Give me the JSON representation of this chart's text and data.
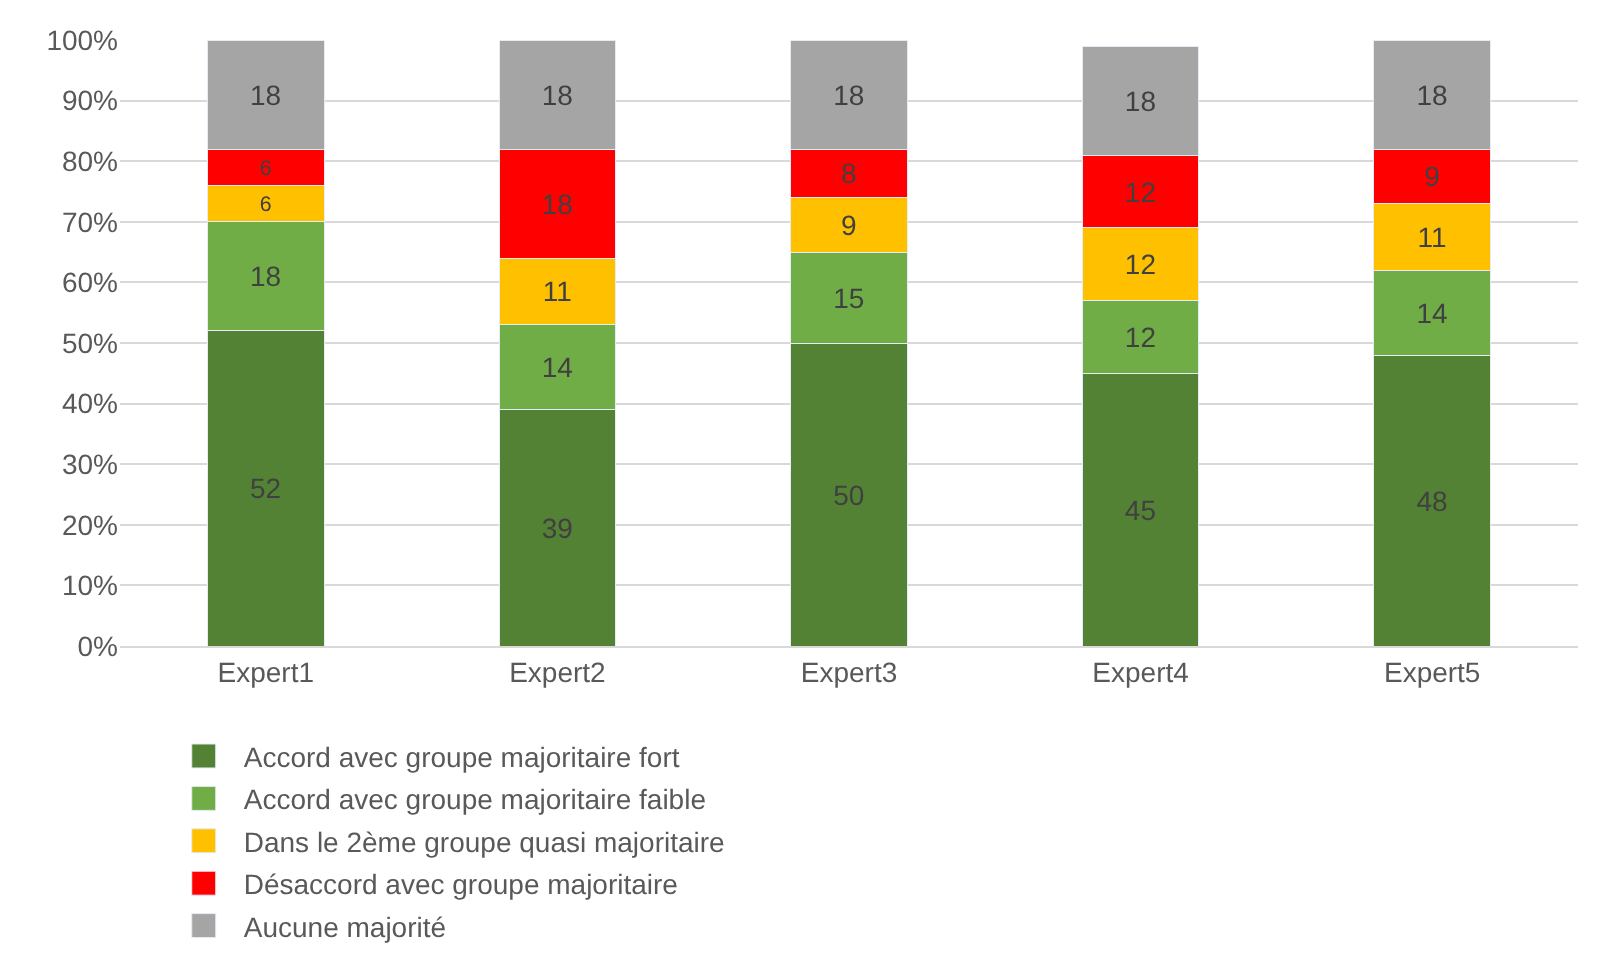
{
  "chart_data": {
    "type": "bar",
    "stacked": true,
    "data_labels": true,
    "grid": "y",
    "legend": "bottom",
    "categories": [
      "Expert1",
      "Expert2",
      "Expert3",
      "Expert4",
      "Expert5"
    ],
    "ylim": [
      0,
      100
    ],
    "yticks": [
      {
        "value": 0,
        "label": "0%"
      },
      {
        "value": 10,
        "label": "10%"
      },
      {
        "value": 20,
        "label": "20%"
      },
      {
        "value": 30,
        "label": "30%"
      },
      {
        "value": 40,
        "label": "40%"
      },
      {
        "value": 50,
        "label": "50%"
      },
      {
        "value": 60,
        "label": "60%"
      },
      {
        "value": 70,
        "label": "70%"
      },
      {
        "value": 80,
        "label": "80%"
      },
      {
        "value": 90,
        "label": "90%"
      },
      {
        "value": 100,
        "label": "100%"
      }
    ],
    "series": [
      {
        "name": "Accord avec groupe majoritaire fort",
        "color": "#548235",
        "values": [
          52,
          39,
          50,
          45,
          48
        ]
      },
      {
        "name": "Accord avec groupe majoritaire faible",
        "color": "#70ad47",
        "values": [
          18,
          14,
          15,
          12,
          14
        ]
      },
      {
        "name": "Dans le 2ème groupe quasi majoritaire",
        "color": "#ffc000",
        "values": [
          6,
          11,
          9,
          12,
          11
        ]
      },
      {
        "name": "Désaccord avec groupe majoritaire",
        "color": "#ff0000",
        "values": [
          6,
          18,
          8,
          12,
          9
        ]
      },
      {
        "name": "Aucune majorité",
        "color": "#a5a5a5",
        "values": [
          18,
          18,
          18,
          18,
          18
        ]
      }
    ]
  }
}
